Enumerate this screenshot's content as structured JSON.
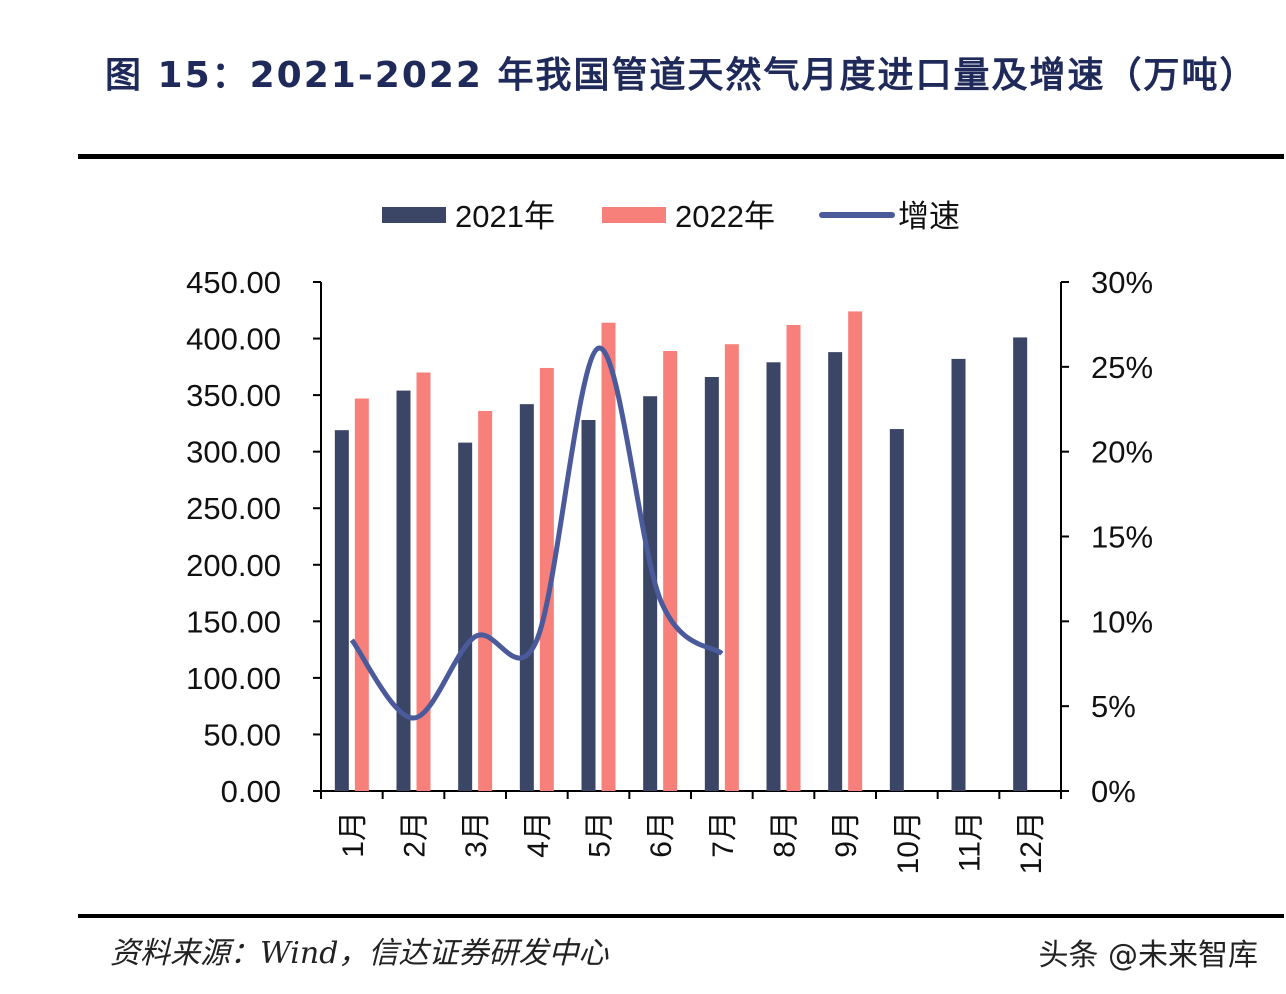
{
  "header": {
    "title": "图 15：2021-2022 年我国管道天然气月度进口量及增速（万吨）"
  },
  "footer": {
    "source": "资料来源：Wind，信达证券研发中心",
    "watermark": "头条 @未来智库"
  },
  "chart_data": {
    "type": "bar",
    "categories": [
      "1月",
      "2月",
      "3月",
      "4月",
      "5月",
      "6月",
      "7月",
      "8月",
      "9月",
      "10月",
      "11月",
      "12月"
    ],
    "series": [
      {
        "name": "2021年",
        "type": "bar",
        "axis": "left",
        "color": "#3b4566",
        "values": [
          319,
          354,
          308,
          342,
          328,
          349,
          366,
          379,
          388,
          320,
          382,
          401
        ]
      },
      {
        "name": "2022年",
        "type": "bar",
        "axis": "left",
        "color": "#f7807a",
        "values": [
          347,
          370,
          336,
          374,
          414,
          389,
          395,
          412,
          424,
          null,
          null,
          null
        ]
      },
      {
        "name": "增速",
        "type": "line",
        "axis": "right",
        "color": "#4a5a9a",
        "values": [
          8.9,
          4.3,
          9.1,
          8.9,
          26.1,
          11.3,
          8.1,
          null,
          null,
          null,
          null,
          null
        ]
      }
    ],
    "y_left": {
      "min": 0,
      "max": 450,
      "ticks": [
        "0.00",
        "50.00",
        "100.00",
        "150.00",
        "200.00",
        "250.00",
        "300.00",
        "350.00",
        "400.00",
        "450.00"
      ]
    },
    "y_right": {
      "min": 0,
      "max": 30,
      "unit": "%",
      "ticks": [
        "0%",
        "5%",
        "10%",
        "15%",
        "20%",
        "25%",
        "30%"
      ]
    },
    "grid": false,
    "legend": "top"
  }
}
